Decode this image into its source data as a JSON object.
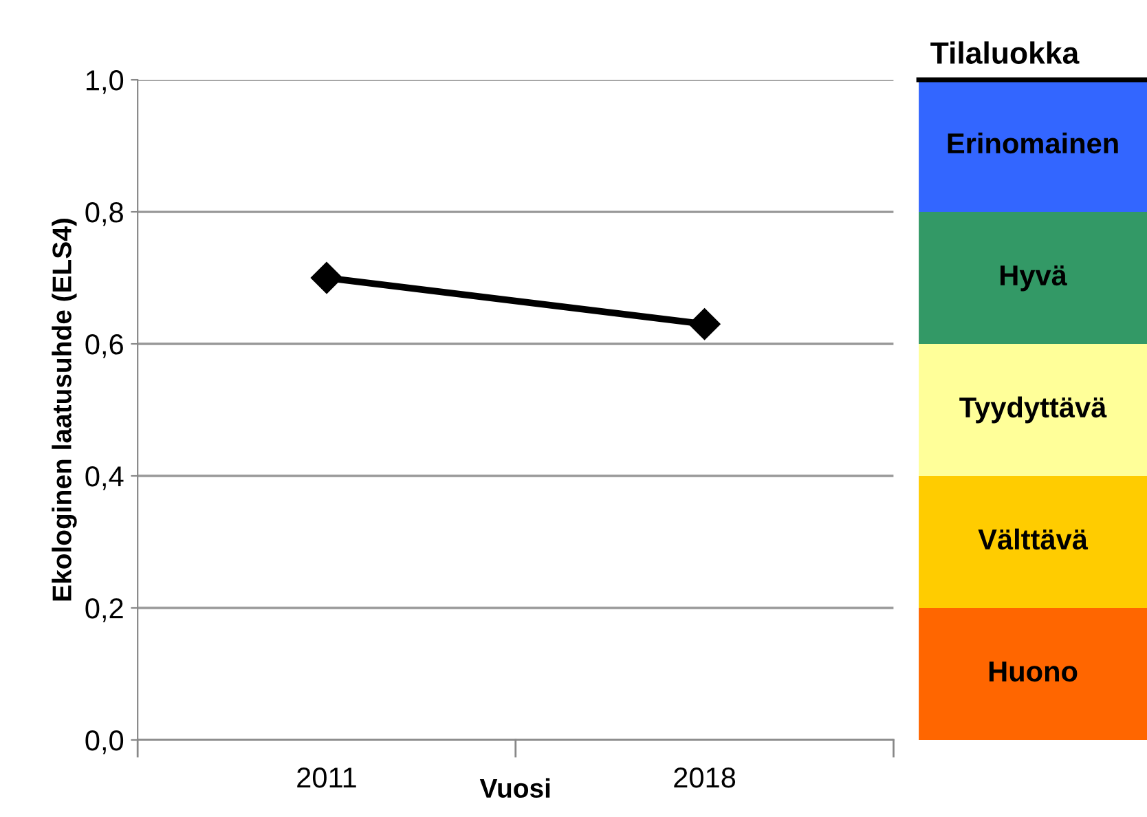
{
  "chart_data": [
    {
      "type": "line",
      "xlabel": "Vuosi",
      "ylabel": "Ekologinen laatusuhde (ELS4)",
      "categories": [
        "2011",
        "2018"
      ],
      "series": [
        {
          "color": "#000000",
          "values": [
            0.7,
            0.63
          ]
        }
      ],
      "marker": "diamond",
      "line_style": "solid",
      "ylim": [
        0,
        1
      ],
      "yticks": [
        {
          "value": 0,
          "label": "0,0"
        },
        {
          "value": 0.2,
          "label": "0,2"
        },
        {
          "value": 0.4,
          "label": "0,4"
        },
        {
          "value": 0.6,
          "label": "0,6"
        },
        {
          "value": 0.8,
          "label": "0,8"
        },
        {
          "value": 1,
          "label": "1,0"
        }
      ],
      "grid": "y"
    },
    {
      "type": "bar",
      "stacked": true,
      "title": "Tilaluokka",
      "categories": [
        null
      ],
      "ylim": [
        0,
        1
      ],
      "tick_labels": false,
      "series": [
        {
          "name": "Huono",
          "color": "#ff6600",
          "values": [
            0.2
          ]
        },
        {
          "name": "Välttävä",
          "color": "#ffcc00",
          "values": [
            0.2
          ]
        },
        {
          "name": "Tyydyttävä",
          "color": "#ffff99",
          "values": [
            0.2
          ]
        },
        {
          "name": "Hyvä",
          "color": "#339966",
          "values": [
            0.2
          ]
        },
        {
          "name": "Erinomainen",
          "color": "#3366ff",
          "values": [
            0.2
          ]
        }
      ]
    }
  ]
}
